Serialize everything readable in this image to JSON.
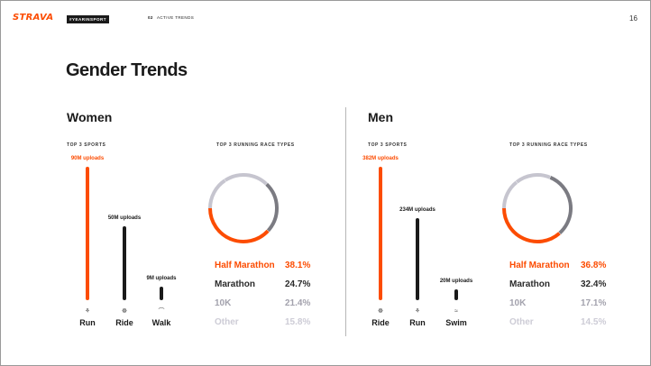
{
  "header": {
    "logo": "STRAVA",
    "hashtag": "#YEARINSPORT",
    "section_num": "02",
    "section_title": "ACTIVE TRENDS",
    "page_number": "16"
  },
  "title": "Gender Trends",
  "colors": {
    "accent": "#fc4c02",
    "dark": "#1a1a1a",
    "grey_mid": "#7b7b82",
    "grey_light": "#c6c5cf"
  },
  "women": {
    "heading": "Women",
    "sports_label": "TOP 3 SPORTS",
    "races_label": "TOP 3 RUNNING RACE TYPES",
    "sports": [
      {
        "name": "Run",
        "uploads": "90M uploads",
        "value_millions": 90,
        "icon": "shoe-icon"
      },
      {
        "name": "Ride",
        "uploads": "50M uploads",
        "value_millions": 50,
        "icon": "bike-icon"
      },
      {
        "name": "Walk",
        "uploads": "9M uploads",
        "value_millions": 9,
        "icon": "sneaker-icon"
      }
    ],
    "races": [
      {
        "name": "Half Marathon",
        "pct": "38.1%",
        "value": 38.1
      },
      {
        "name": "Marathon",
        "pct": "24.7%",
        "value": 24.7
      },
      {
        "name": "10K",
        "pct": "21.4%",
        "value": 21.4
      },
      {
        "name": "Other",
        "pct": "15.8%",
        "value": 15.8
      }
    ]
  },
  "men": {
    "heading": "Men",
    "sports_label": "TOP 3 SPORTS",
    "races_label": "TOP 3 RUNNING RACE TYPES",
    "sports": [
      {
        "name": "Ride",
        "uploads": "382M uploads",
        "value_millions": 382,
        "icon": "bike-icon"
      },
      {
        "name": "Run",
        "uploads": "234M uploads",
        "value_millions": 234,
        "icon": "shoe-icon"
      },
      {
        "name": "Swim",
        "uploads": "20M uploads",
        "value_millions": 20,
        "icon": "swim-icon"
      }
    ],
    "races": [
      {
        "name": "Half Marathon",
        "pct": "36.8%",
        "value": 36.8
      },
      {
        "name": "Marathon",
        "pct": "32.4%",
        "value": 32.4
      },
      {
        "name": "10K",
        "pct": "17.1%",
        "value": 17.1
      },
      {
        "name": "Other",
        "pct": "14.5%",
        "value": 14.5
      }
    ]
  }
}
